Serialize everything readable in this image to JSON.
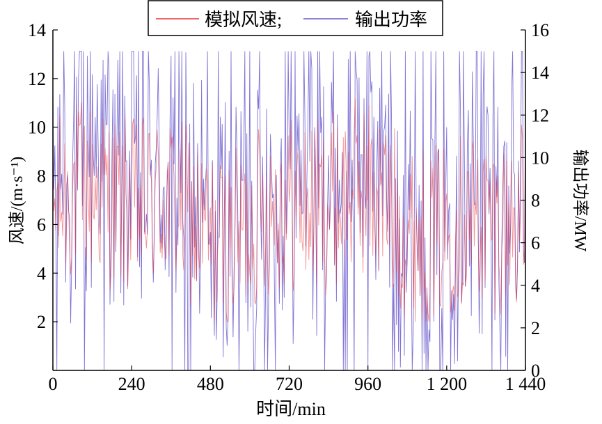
{
  "chart_data": {
    "type": "line",
    "title": "",
    "xlabel": "时间/min",
    "ylabel_left": "风速/(m·s⁻¹)",
    "ylabel_right": "输出功率/MW",
    "xlim": [
      0,
      1440
    ],
    "ylim_left": [
      0,
      14
    ],
    "ylim_right": [
      0,
      16
    ],
    "x_ticks": [
      0,
      240,
      480,
      720,
      960,
      1200,
      1440
    ],
    "x_tick_labels": [
      "0",
      "240",
      "480",
      "720",
      "960",
      "1 200",
      "1 440"
    ],
    "y_left_ticks": [
      2,
      4,
      6,
      8,
      10,
      12,
      14
    ],
    "y_left_tick_labels": [
      "2",
      "4",
      "6",
      "8",
      "10",
      "12",
      "14"
    ],
    "y_right_ticks": [
      0,
      2,
      4,
      6,
      8,
      10,
      12,
      14,
      16
    ],
    "y_right_tick_labels": [
      "0",
      "2",
      "4",
      "6",
      "8",
      "10",
      "12",
      "14",
      "16"
    ],
    "legend_position": "top-center",
    "grid": false,
    "series": [
      {
        "name": "模拟风速;",
        "axis": "left",
        "color": "#e8363c",
        "x_range": [
          0,
          1440
        ],
        "sampling_interval_min": 1,
        "value_range": [
          2,
          13
        ],
        "typical_mean": 6.5
      },
      {
        "name": "输出功率",
        "axis": "right",
        "color": "#6a5acd",
        "x_range": [
          0,
          1440
        ],
        "sampling_interval_min": 1,
        "value_range": [
          0,
          15
        ],
        "typical_mean": 7
      }
    ]
  }
}
